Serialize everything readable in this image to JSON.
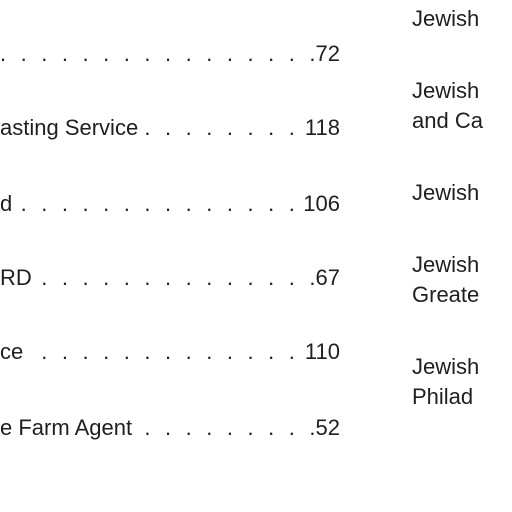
{
  "left_column": {
    "entries": [
      {
        "text": "",
        "page": "72"
      },
      {
        "text": "asting Service",
        "page": "118"
      },
      {
        "text": "d",
        "page": "106"
      },
      {
        "text": "RD",
        "page": "67"
      },
      {
        "text": "ce",
        "page": "110"
      },
      {
        "text": "e Farm Agent",
        "page": "52"
      }
    ]
  },
  "right_column": {
    "lines": [
      "Jewish",
      "Jewish",
      "and Ca",
      "Jewish",
      "Jewish",
      "Greate",
      "Jewish",
      "Philad"
    ]
  }
}
